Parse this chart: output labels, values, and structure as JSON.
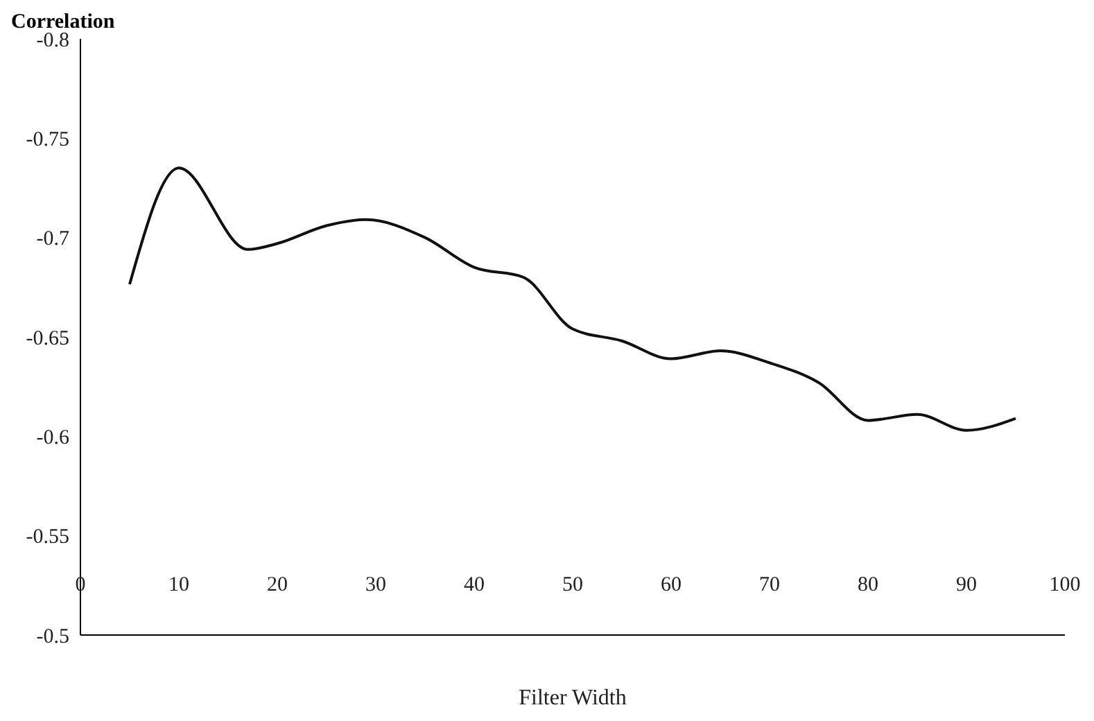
{
  "chart_data": {
    "type": "line",
    "title": "Correlation",
    "xlabel": "Filter Width",
    "x": [
      5,
      10,
      17,
      20,
      25,
      29,
      35,
      40,
      45,
      50,
      55,
      60,
      65,
      70,
      75,
      80,
      85,
      90,
      95
    ],
    "values": [
      -0.6765,
      -0.735,
      -0.694,
      -0.697,
      -0.706,
      -0.709,
      -0.7,
      -0.685,
      -0.68,
      -0.654,
      -0.648,
      -0.639,
      -0.643,
      -0.637,
      -0.627,
      -0.608,
      -0.611,
      -0.603,
      -0.609
    ],
    "color": "#111111",
    "xlim": [
      0,
      100
    ],
    "xticks": [
      0,
      10,
      20,
      30,
      40,
      50,
      60,
      70,
      80,
      90,
      100
    ],
    "ylim": [
      -0.5,
      -0.8
    ],
    "yticks": [
      -0.8,
      -0.75,
      -0.7,
      -0.65,
      -0.6,
      -0.55,
      -0.5
    ],
    "grid": false,
    "marker": "none",
    "line_style": "solid"
  }
}
